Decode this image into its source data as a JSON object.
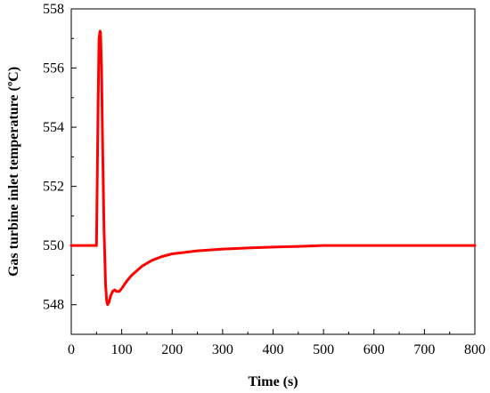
{
  "chart_data": {
    "type": "line",
    "title": "",
    "xlabel": "Time (s)",
    "ylabel": "Gas turbine inlet temperature (ºC)",
    "xlim": [
      0,
      800
    ],
    "ylim": [
      547.0,
      558.0
    ],
    "xticks": [
      0,
      100,
      200,
      300,
      400,
      500,
      600,
      700,
      800
    ],
    "yticks": [
      548,
      550,
      552,
      554,
      556,
      558
    ],
    "grid": false,
    "legend": "none",
    "series": [
      {
        "color": "#ff0000",
        "x": [
          0,
          50,
          51,
          53,
          55,
          57,
          58,
          60,
          62,
          65,
          68,
          70,
          72,
          75,
          78,
          82,
          86,
          90,
          95,
          100,
          110,
          120,
          140,
          160,
          180,
          200,
          250,
          300,
          350,
          400,
          450,
          500,
          600,
          700,
          800
        ],
        "y": [
          550.0,
          550.0,
          551.5,
          554.5,
          557.0,
          557.25,
          557.2,
          556.0,
          553.5,
          550.5,
          548.7,
          548.15,
          548.0,
          548.1,
          548.3,
          548.45,
          548.5,
          548.45,
          548.45,
          548.55,
          548.8,
          549.0,
          549.3,
          549.5,
          549.63,
          549.72,
          549.82,
          549.88,
          549.92,
          549.95,
          549.97,
          550.0,
          550.0,
          550.0,
          550.0
        ]
      }
    ]
  }
}
